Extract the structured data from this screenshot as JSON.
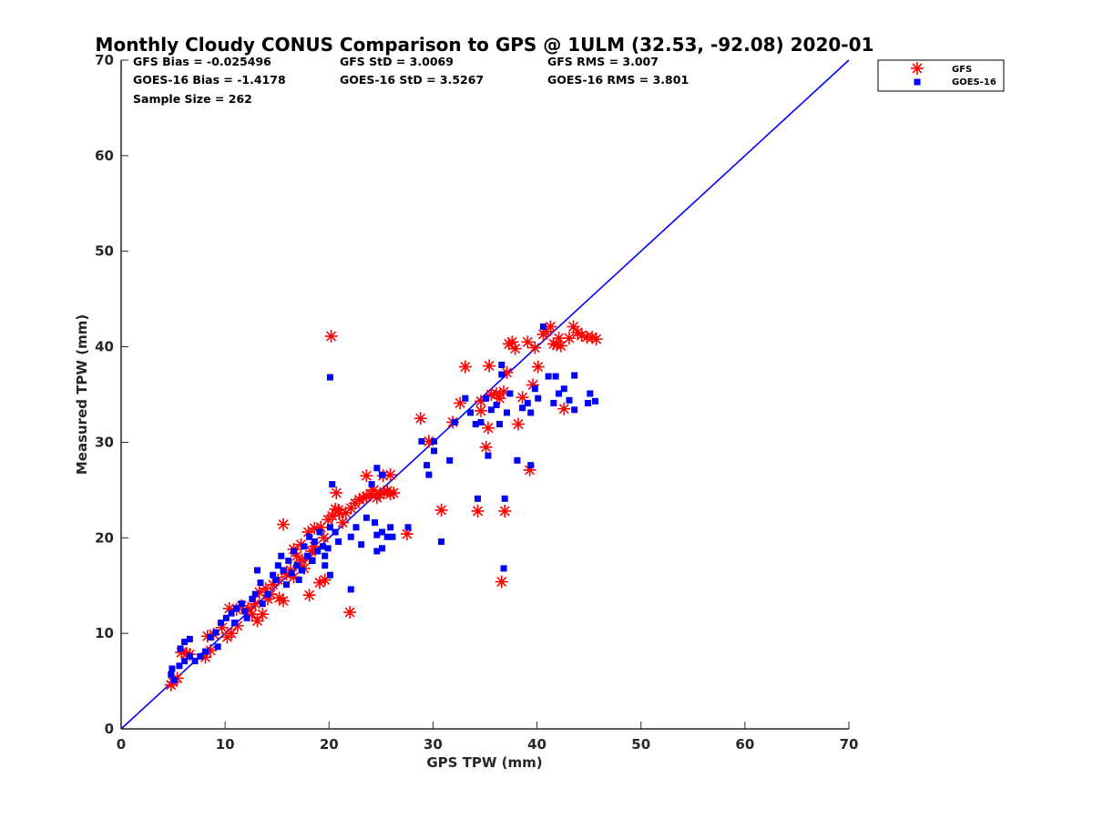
{
  "chart_data": {
    "type": "scatter",
    "title": "Monthly Cloudy CONUS Comparison to GPS @ 1ULM (32.53, -92.08) 2020-01",
    "xlabel": "GPS TPW (mm)",
    "ylabel": "Measured TPW (mm)",
    "xlim": [
      0,
      70
    ],
    "ylim": [
      0,
      70
    ],
    "xticks": [
      0,
      10,
      20,
      30,
      40,
      50,
      60,
      70
    ],
    "yticks": [
      0,
      10,
      20,
      30,
      40,
      50,
      60,
      70
    ],
    "grid": false,
    "legend_position": "outside-top-right",
    "stats": [
      [
        "GFS Bias = -0.025496",
        "GFS StD = 3.0069",
        "GFS RMS = 3.007"
      ],
      [
        "GOES-16 Bias = -1.4178",
        "GOES-16 StD = 3.5267",
        "GOES-16 RMS = 3.801"
      ],
      [
        "Sample Size = 262"
      ]
    ],
    "reference_line": {
      "name": "1:1",
      "x": [
        0,
        70
      ],
      "y": [
        0,
        70
      ],
      "color": "#0000ff"
    },
    "series": [
      {
        "name": "GFS",
        "marker": "asterisk",
        "color": "#ff0000",
        "points": [
          [
            4.8,
            4.6
          ],
          [
            5.0,
            4.9
          ],
          [
            5.4,
            5.3
          ],
          [
            5.8,
            8.0
          ],
          [
            6.3,
            7.9
          ],
          [
            6.6,
            7.8
          ],
          [
            8.1,
            7.5
          ],
          [
            8.6,
            8.2
          ],
          [
            8.3,
            9.7
          ],
          [
            8.9,
            9.9
          ],
          [
            9.7,
            10.6
          ],
          [
            10.2,
            9.6
          ],
          [
            10.6,
            10.0
          ],
          [
            11.2,
            10.8
          ],
          [
            10.4,
            12.6
          ],
          [
            11.1,
            12.5
          ],
          [
            11.6,
            12.9
          ],
          [
            12.2,
            12.6
          ],
          [
            12.6,
            12.0
          ],
          [
            13.1,
            11.3
          ],
          [
            13.6,
            12.0
          ],
          [
            12.9,
            13.1
          ],
          [
            13.3,
            14.3
          ],
          [
            13.9,
            14.7
          ],
          [
            14.4,
            14.1
          ],
          [
            14.1,
            13.6
          ],
          [
            14.6,
            15.1
          ],
          [
            15.2,
            13.7
          ],
          [
            15.6,
            13.4
          ],
          [
            15.1,
            15.6
          ],
          [
            15.9,
            16.2
          ],
          [
            16.3,
            16.6
          ],
          [
            16.6,
            15.9
          ],
          [
            17.1,
            17.1
          ],
          [
            16.9,
            18.1
          ],
          [
            17.4,
            17.7
          ],
          [
            17.6,
            16.8
          ],
          [
            18.1,
            17.9
          ],
          [
            18.3,
            18.6
          ],
          [
            18.6,
            19.1
          ],
          [
            18.1,
            14.0
          ],
          [
            19.1,
            15.3
          ],
          [
            19.6,
            15.6
          ],
          [
            15.6,
            21.4
          ],
          [
            16.6,
            18.8
          ],
          [
            17.3,
            19.3
          ],
          [
            18.0,
            20.6
          ],
          [
            18.6,
            21.0
          ],
          [
            19.2,
            21.1
          ],
          [
            19.5,
            20.0
          ],
          [
            19.9,
            21.9
          ],
          [
            20.3,
            22.3
          ],
          [
            20.6,
            23.0
          ],
          [
            21.0,
            22.6
          ],
          [
            21.3,
            21.6
          ],
          [
            20.7,
            24.7
          ],
          [
            20.9,
            22.9
          ],
          [
            21.6,
            22.6
          ],
          [
            22.1,
            23.1
          ],
          [
            22.5,
            23.6
          ],
          [
            22.9,
            24.0
          ],
          [
            23.3,
            24.2
          ],
          [
            23.6,
            24.3
          ],
          [
            24.0,
            24.6
          ],
          [
            24.3,
            25.0
          ],
          [
            24.6,
            24.2
          ],
          [
            24.9,
            24.5
          ],
          [
            25.3,
            24.8
          ],
          [
            25.6,
            24.9
          ],
          [
            25.9,
            24.6
          ],
          [
            26.2,
            24.7
          ],
          [
            23.6,
            26.5
          ],
          [
            25.2,
            26.5
          ],
          [
            25.9,
            26.6
          ],
          [
            22.0,
            12.2
          ],
          [
            20.2,
            41.1
          ],
          [
            27.5,
            20.4
          ],
          [
            28.8,
            32.5
          ],
          [
            29.6,
            30.1
          ],
          [
            30.8,
            22.9
          ],
          [
            31.9,
            32.1
          ],
          [
            32.6,
            34.1
          ],
          [
            33.1,
            37.9
          ],
          [
            34.3,
            22.8
          ],
          [
            34.6,
            34.3
          ],
          [
            34.6,
            33.3
          ],
          [
            35.1,
            29.5
          ],
          [
            35.3,
            31.5
          ],
          [
            35.4,
            38.0
          ],
          [
            35.6,
            35.0
          ],
          [
            36.1,
            35.1
          ],
          [
            36.4,
            34.6
          ],
          [
            36.8,
            35.3
          ],
          [
            36.9,
            22.8
          ],
          [
            36.6,
            15.4
          ],
          [
            37.1,
            37.3
          ],
          [
            37.3,
            40.3
          ],
          [
            37.6,
            40.5
          ],
          [
            37.9,
            39.8
          ],
          [
            38.2,
            31.9
          ],
          [
            38.6,
            34.7
          ],
          [
            39.1,
            40.5
          ],
          [
            39.3,
            27.1
          ],
          [
            39.6,
            36.0
          ],
          [
            39.8,
            39.9
          ],
          [
            40.1,
            37.9
          ],
          [
            40.6,
            41.3
          ],
          [
            40.9,
            41.6
          ],
          [
            41.3,
            42.1
          ],
          [
            41.6,
            40.3
          ],
          [
            41.9,
            40.2
          ],
          [
            42.1,
            40.9
          ],
          [
            42.3,
            40.1
          ],
          [
            42.6,
            33.5
          ],
          [
            43.1,
            40.9
          ],
          [
            43.5,
            42.1
          ],
          [
            43.9,
            41.5
          ],
          [
            44.3,
            41.2
          ],
          [
            44.8,
            41.0
          ],
          [
            45.3,
            41.0
          ],
          [
            45.7,
            40.8
          ]
        ]
      },
      {
        "name": "GOES-16",
        "marker": "square",
        "color": "#0000ff",
        "points": [
          [
            4.8,
            5.7
          ],
          [
            4.9,
            6.3
          ],
          [
            5.1,
            5.1
          ],
          [
            5.6,
            6.6
          ],
          [
            5.7,
            8.4
          ],
          [
            6.1,
            7.1
          ],
          [
            6.1,
            9.1
          ],
          [
            6.6,
            9.4
          ],
          [
            6.6,
            7.6
          ],
          [
            7.1,
            7.1
          ],
          [
            7.6,
            7.6
          ],
          [
            8.1,
            8.1
          ],
          [
            8.6,
            9.6
          ],
          [
            9.1,
            10.1
          ],
          [
            9.3,
            8.6
          ],
          [
            9.6,
            11.1
          ],
          [
            10.1,
            11.6
          ],
          [
            10.6,
            12.1
          ],
          [
            10.9,
            11.1
          ],
          [
            11.1,
            12.6
          ],
          [
            11.6,
            13.1
          ],
          [
            11.9,
            12.3
          ],
          [
            12.1,
            11.6
          ],
          [
            12.6,
            13.6
          ],
          [
            12.9,
            14.1
          ],
          [
            13.1,
            16.6
          ],
          [
            13.4,
            15.3
          ],
          [
            13.6,
            13.1
          ],
          [
            14.1,
            14.1
          ],
          [
            14.6,
            16.1
          ],
          [
            14.9,
            15.6
          ],
          [
            15.1,
            17.1
          ],
          [
            15.4,
            18.1
          ],
          [
            15.6,
            16.6
          ],
          [
            15.9,
            15.1
          ],
          [
            16.1,
            17.6
          ],
          [
            16.4,
            16.3
          ],
          [
            16.6,
            18.6
          ],
          [
            16.9,
            17.1
          ],
          [
            17.1,
            15.6
          ],
          [
            17.4,
            16.6
          ],
          [
            17.6,
            19.1
          ],
          [
            17.9,
            18.1
          ],
          [
            18.1,
            20.1
          ],
          [
            18.4,
            17.6
          ],
          [
            18.6,
            19.6
          ],
          [
            18.9,
            18.6
          ],
          [
            19.1,
            20.6
          ],
          [
            19.4,
            19.1
          ],
          [
            19.6,
            17.1
          ],
          [
            19.9,
            18.9
          ],
          [
            20.1,
            21.1
          ],
          [
            20.3,
            25.6
          ],
          [
            20.6,
            20.6
          ],
          [
            20.9,
            19.6
          ],
          [
            20.1,
            36.8
          ],
          [
            19.6,
            18.1
          ],
          [
            20.1,
            16.1
          ],
          [
            22.1,
            14.6
          ],
          [
            22.1,
            20.1
          ],
          [
            22.6,
            21.1
          ],
          [
            23.1,
            19.3
          ],
          [
            23.6,
            22.1
          ],
          [
            24.1,
            25.6
          ],
          [
            24.4,
            21.6
          ],
          [
            24.6,
            27.3
          ],
          [
            25.1,
            26.6
          ],
          [
            25.1,
            20.6
          ],
          [
            24.6,
            20.3
          ],
          [
            25.6,
            20.1
          ],
          [
            24.6,
            18.6
          ],
          [
            25.1,
            18.9
          ],
          [
            25.9,
            21.1
          ],
          [
            26.1,
            20.1
          ],
          [
            27.6,
            21.1
          ],
          [
            28.9,
            30.1
          ],
          [
            29.4,
            27.6
          ],
          [
            29.6,
            26.6
          ],
          [
            30.1,
            30.1
          ],
          [
            30.1,
            29.1
          ],
          [
            30.8,
            19.6
          ],
          [
            31.6,
            28.1
          ],
          [
            32.1,
            32.1
          ],
          [
            33.1,
            34.6
          ],
          [
            33.6,
            33.1
          ],
          [
            34.1,
            31.9
          ],
          [
            34.3,
            24.1
          ],
          [
            34.6,
            32.1
          ],
          [
            35.1,
            34.6
          ],
          [
            35.3,
            28.6
          ],
          [
            35.6,
            33.4
          ],
          [
            36.1,
            33.9
          ],
          [
            36.4,
            31.9
          ],
          [
            36.6,
            37.1
          ],
          [
            36.6,
            38.1
          ],
          [
            36.9,
            24.1
          ],
          [
            36.8,
            16.8
          ],
          [
            37.1,
            33.1
          ],
          [
            37.4,
            35.1
          ],
          [
            38.1,
            28.1
          ],
          [
            38.6,
            33.6
          ],
          [
            39.1,
            34.1
          ],
          [
            39.4,
            33.1
          ],
          [
            39.4,
            27.6
          ],
          [
            39.8,
            35.6
          ],
          [
            40.1,
            34.6
          ],
          [
            40.6,
            42.1
          ],
          [
            41.1,
            36.9
          ],
          [
            41.6,
            34.1
          ],
          [
            41.8,
            36.9
          ],
          [
            42.1,
            35.1
          ],
          [
            42.6,
            35.6
          ],
          [
            43.1,
            34.4
          ],
          [
            43.6,
            33.4
          ],
          [
            43.6,
            37.0
          ],
          [
            44.9,
            34.1
          ],
          [
            45.1,
            35.1
          ],
          [
            45.6,
            34.3
          ]
        ]
      }
    ]
  }
}
